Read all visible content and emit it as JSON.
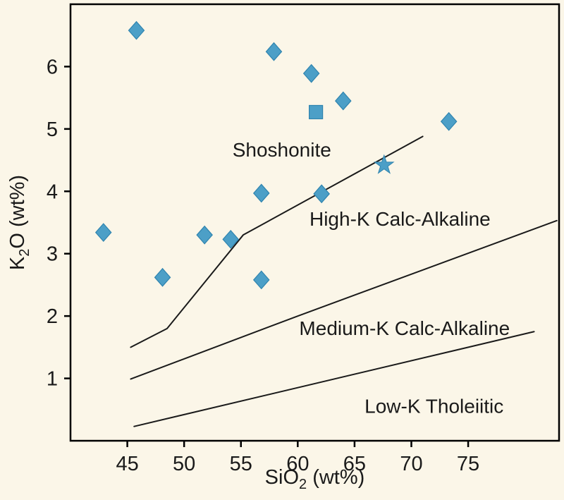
{
  "chart_data": {
    "type": "scatter",
    "title": "",
    "xlabel": {
      "pre": "SiO",
      "sub": "2",
      "post": " (wt%)"
    },
    "ylabel": {
      "pre": "K",
      "sub": "2",
      "post": "O (wt%)"
    },
    "xlim": [
      40,
      83
    ],
    "ylim": [
      0,
      7
    ],
    "x_ticks": [
      45,
      50,
      55,
      60,
      65,
      70,
      75
    ],
    "y_ticks": [
      1,
      2,
      3,
      4,
      5,
      6
    ],
    "grid": false,
    "legend": "none",
    "series": [
      {
        "name": "samples-diamond",
        "marker": "diamond",
        "points": [
          [
            45.8,
            6.58
          ],
          [
            57.9,
            6.24
          ],
          [
            61.2,
            5.89
          ],
          [
            64.0,
            5.45
          ],
          [
            73.3,
            5.12
          ],
          [
            56.8,
            3.97
          ],
          [
            62.1,
            3.96
          ],
          [
            42.9,
            3.34
          ],
          [
            51.8,
            3.3
          ],
          [
            54.1,
            3.23
          ],
          [
            48.1,
            2.62
          ],
          [
            56.8,
            2.58
          ]
        ]
      },
      {
        "name": "sample-square",
        "marker": "square",
        "points": [
          [
            61.6,
            5.27
          ]
        ]
      },
      {
        "name": "sample-star",
        "marker": "star",
        "points": [
          [
            67.6,
            4.42
          ]
        ]
      }
    ],
    "boundaries": [
      {
        "name": "shoshonite-highk-boundary",
        "points": [
          [
            45.3,
            1.5
          ],
          [
            48.5,
            1.8
          ],
          [
            55.2,
            3.3
          ],
          [
            71.0,
            4.88
          ]
        ]
      },
      {
        "name": "highk-mediumk-boundary",
        "points": [
          [
            45.3,
            0.99
          ],
          [
            60.0,
            2.0
          ],
          [
            82.8,
            3.53
          ]
        ]
      },
      {
        "name": "mediumk-lowk-boundary",
        "points": [
          [
            45.6,
            0.23
          ],
          [
            80.8,
            1.75
          ]
        ]
      }
    ],
    "region_labels": [
      {
        "text": "Shoshonite",
        "x": 58.6,
        "y": 4.67
      },
      {
        "text": "High-K Calc-Alkaline",
        "x": 69.0,
        "y": 3.56
      },
      {
        "text": "Medium-K Calc-Alkaline",
        "x": 69.4,
        "y": 1.81
      },
      {
        "text": "Low-K Tholeiitic",
        "x": 72.0,
        "y": 0.56
      }
    ],
    "colors": {
      "background": "#fbf6e8",
      "marker_fill": "#4c9fc7",
      "marker_stroke": "#2f84af",
      "boundary_line": "#1a1a1a",
      "axis": "#000000",
      "text": "#1a1a1a"
    }
  }
}
